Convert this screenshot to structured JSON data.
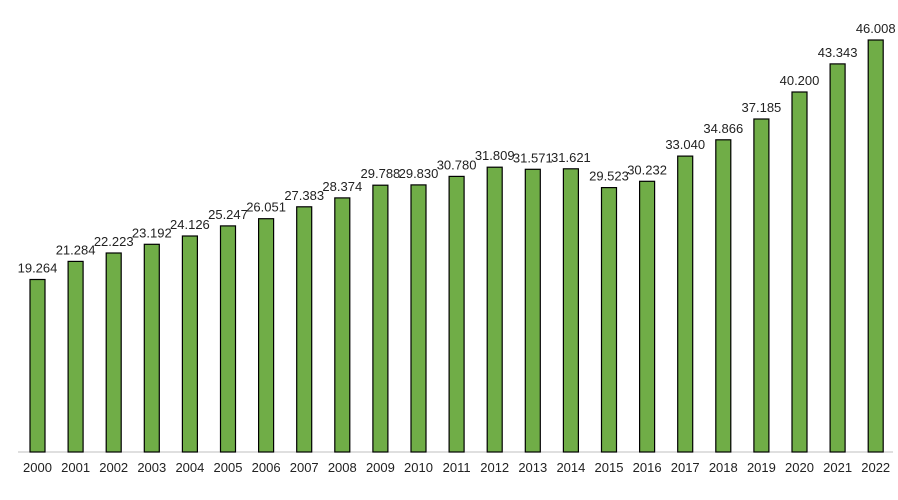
{
  "chart_data": {
    "type": "bar",
    "title": "",
    "xlabel": "",
    "ylabel": "",
    "categories": [
      "2000",
      "2001",
      "2002",
      "2003",
      "2004",
      "2005",
      "2006",
      "2007",
      "2008",
      "2009",
      "2010",
      "2011",
      "2012",
      "2013",
      "2014",
      "2015",
      "2016",
      "2017",
      "2018",
      "2019",
      "2020",
      "2021",
      "2022"
    ],
    "values": [
      19.264,
      21.284,
      22.223,
      23.192,
      24.126,
      25.247,
      26.051,
      27.383,
      28.374,
      29.788,
      29.83,
      30.78,
      31.809,
      31.571,
      31.621,
      29.523,
      30.232,
      33.04,
      34.866,
      37.185,
      40.2,
      43.343,
      46.008
    ],
    "value_labels": [
      "19.264",
      "21.284",
      "22.223",
      "23.192",
      "24.126",
      "25.247",
      "26.051",
      "27.383",
      "28.374",
      "29.788",
      "29.830",
      "30.780",
      "31.809",
      "31.571",
      "31.621",
      "29.523",
      "30.232",
      "33.040",
      "34.866",
      "37.185",
      "40.200",
      "43.343",
      "46.008"
    ],
    "ylim": [
      0,
      46.008
    ],
    "grid": false,
    "legend": "none",
    "colors": {
      "bar": "#70ad47",
      "bar_outline": "#000000",
      "axis": "#bfbfbf"
    }
  }
}
